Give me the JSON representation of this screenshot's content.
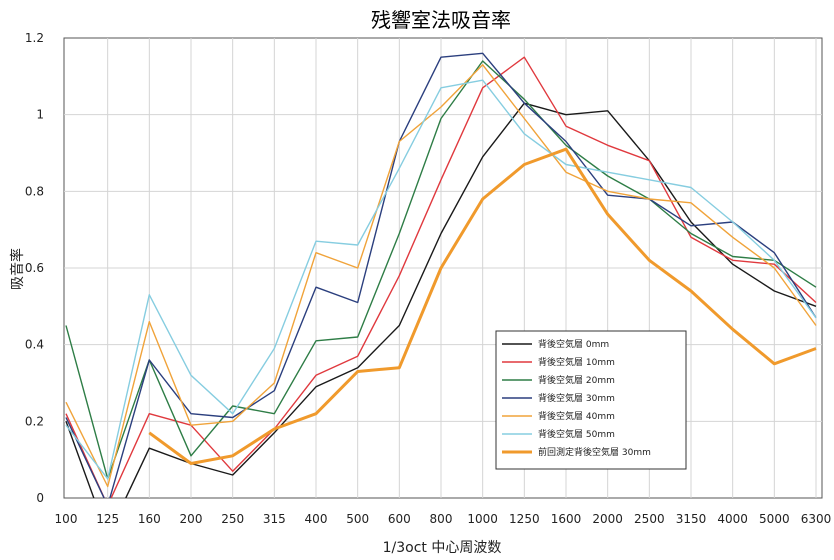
{
  "chart_data": {
    "type": "line",
    "title": "残響室法吸音率",
    "xlabel": "1/3oct 中心周波数",
    "ylabel": "吸音率",
    "categories": [
      "100",
      "125",
      "160",
      "200",
      "250",
      "315",
      "400",
      "500",
      "600",
      "800",
      "1000",
      "1250",
      "1600",
      "2000",
      "2500",
      "3150",
      "4000",
      "5000",
      "6300"
    ],
    "ylim": [
      0,
      1.2
    ],
    "yticks": [
      "0",
      "0.2",
      "0.4",
      "0.6",
      "0.8",
      "1",
      "1.2"
    ],
    "grid": true,
    "legend_position": "bottom-right",
    "series": [
      {
        "name": "背後空気層 0mm",
        "color": "#1a1a1a",
        "width": 1.4,
        "values": [
          0.2,
          -0.1,
          0.13,
          0.09,
          0.06,
          0.17,
          0.29,
          0.34,
          0.45,
          0.69,
          0.89,
          1.03,
          1.0,
          1.01,
          0.88,
          0.72,
          0.61,
          0.54,
          0.5
        ]
      },
      {
        "name": "背後空気層 10mm",
        "color": "#e0393e",
        "width": 1.4,
        "values": [
          0.22,
          -0.02,
          0.22,
          0.19,
          0.07,
          0.18,
          0.32,
          0.37,
          0.58,
          0.83,
          1.07,
          1.15,
          0.97,
          0.92,
          0.88,
          0.68,
          0.62,
          0.61,
          0.51
        ]
      },
      {
        "name": "背後空気層 20mm",
        "color": "#2e7d46",
        "width": 1.4,
        "values": [
          0.45,
          0.05,
          0.36,
          0.11,
          0.24,
          0.22,
          0.41,
          0.42,
          0.69,
          0.99,
          1.14,
          1.04,
          0.92,
          0.84,
          0.78,
          0.69,
          0.63,
          0.62,
          0.55
        ]
      },
      {
        "name": "背後空気層 30mm",
        "color": "#2b3f7e",
        "width": 1.4,
        "values": [
          0.21,
          -0.02,
          0.36,
          0.22,
          0.21,
          0.28,
          0.55,
          0.51,
          0.93,
          1.15,
          1.16,
          1.03,
          0.93,
          0.79,
          0.78,
          0.71,
          0.72,
          0.64,
          0.47
        ]
      },
      {
        "name": "背後空気層 40mm",
        "color": "#f0a33a",
        "width": 1.4,
        "values": [
          0.25,
          0.03,
          0.46,
          0.19,
          0.2,
          0.3,
          0.64,
          0.6,
          0.93,
          1.02,
          1.13,
          0.99,
          0.85,
          0.8,
          0.78,
          0.77,
          0.68,
          0.6,
          0.45
        ]
      },
      {
        "name": "背後空気層 50mm",
        "color": "#86cde0",
        "width": 1.4,
        "values": [
          0.19,
          0.05,
          0.53,
          0.32,
          0.22,
          0.39,
          0.67,
          0.66,
          0.86,
          1.07,
          1.09,
          0.95,
          0.87,
          0.85,
          0.83,
          0.81,
          0.72,
          0.62,
          0.47
        ]
      },
      {
        "name": "前回測定背後空気層 30mm",
        "color": "#f09a2c",
        "width": 3,
        "values": [
          null,
          null,
          0.17,
          0.09,
          0.11,
          0.18,
          0.22,
          0.33,
          0.34,
          0.6,
          0.78,
          0.87,
          0.91,
          0.74,
          0.62,
          0.54,
          0.44,
          0.35,
          0.39
        ]
      }
    ]
  }
}
